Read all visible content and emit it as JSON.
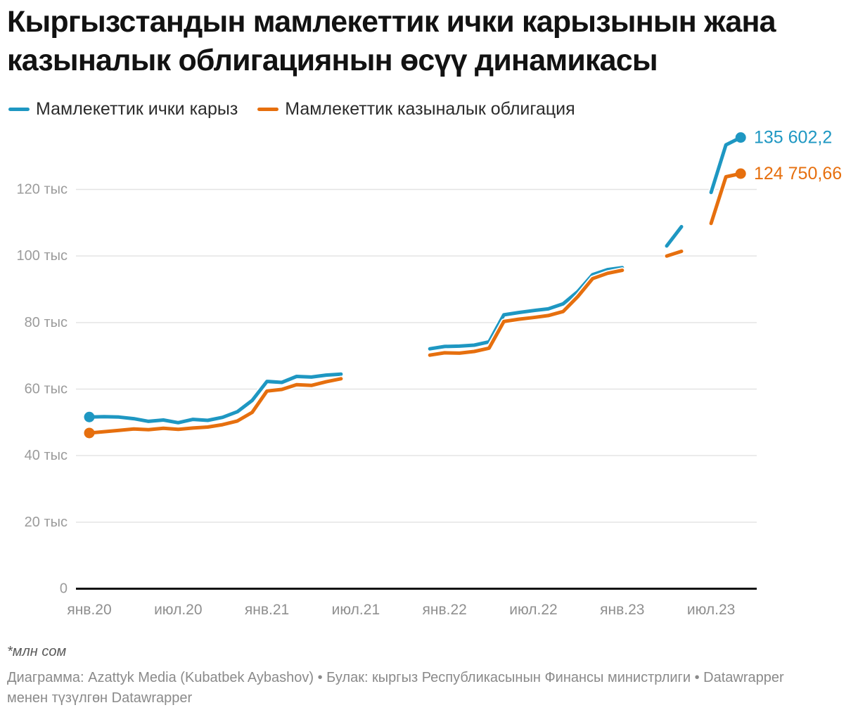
{
  "title": "Кыргызстандын мамлекеттик ички карызынын жана казыналык облигациянын өсүү динамикасы",
  "legend": {
    "items": [
      {
        "label": "Мамлекеттик ички карыз",
        "color": "#1e97c2"
      },
      {
        "label": "Мамлекеттик казыналык облигация",
        "color": "#e66f0e"
      }
    ]
  },
  "footnote": "*млн сом",
  "byline": "Диаграмма: Azattyk Media (Kubatbek Aybashov) • Булак: кыргыз Республикасынын Финансы министрлиги • Datawrapper менен түзүлгөн Datawrapper",
  "chart_data": {
    "type": "line",
    "unit": "млн сом",
    "grid": true,
    "legend_position": "top-left",
    "ylim": [
      0,
      140000
    ],
    "y_ticks": [
      {
        "label": "0",
        "value": 0
      },
      {
        "label": "20 тыс",
        "value": 20000
      },
      {
        "label": "40 тыс",
        "value": 40000
      },
      {
        "label": "60 тыс",
        "value": 60000
      },
      {
        "label": "80 тыс",
        "value": 80000
      },
      {
        "label": "100 тыс",
        "value": 100000
      },
      {
        "label": "120 тыс",
        "value": 120000
      }
    ],
    "x": [
      "2020-01",
      "2020-02",
      "2020-03",
      "2020-04",
      "2020-05",
      "2020-06",
      "2020-07",
      "2020-08",
      "2020-09",
      "2020-10",
      "2020-11",
      "2020-12",
      "2021-01",
      "2021-02",
      "2021-03",
      "2021-04",
      "2021-05",
      "2021-06",
      "2021-07",
      "2021-08",
      "2021-09",
      "2021-10",
      "2021-11",
      "2021-12",
      "2022-01",
      "2022-02",
      "2022-03",
      "2022-04",
      "2022-05",
      "2022-06",
      "2022-07",
      "2022-08",
      "2022-09",
      "2022-10",
      "2022-11",
      "2022-12",
      "2023-01",
      "2023-02",
      "2023-03",
      "2023-04",
      "2023-05",
      "2023-06",
      "2023-07",
      "2023-08",
      "2023-09"
    ],
    "x_ticks": [
      {
        "label": "янв.20",
        "index": 0
      },
      {
        "label": "июл.20",
        "index": 6
      },
      {
        "label": "янв.21",
        "index": 12
      },
      {
        "label": "июл.21",
        "index": 18
      },
      {
        "label": "янв.22",
        "index": 24
      },
      {
        "label": "июл.22",
        "index": 30
      },
      {
        "label": "янв.23",
        "index": 36
      },
      {
        "label": "июл.23",
        "index": 42
      }
    ],
    "series": [
      {
        "name": "Мамлекеттик ички карыз",
        "color": "#1e97c2",
        "end_label": "135 602,2",
        "end_value": 135602.2,
        "values": [
          51600,
          51700,
          51600,
          51100,
          50300,
          50700,
          49900,
          50900,
          50600,
          51500,
          53200,
          56600,
          62300,
          62000,
          63800,
          63600,
          64200,
          64500,
          null,
          null,
          null,
          null,
          null,
          72100,
          72800,
          72900,
          73200,
          74200,
          82300,
          83000,
          83600,
          84100,
          85600,
          89300,
          94400,
          95900,
          96500,
          null,
          null,
          103000,
          108800,
          null,
          119100,
          133400,
          135602.2
        ]
      },
      {
        "name": "Мамлекеттик казыналык облигация",
        "color": "#e66f0e",
        "end_label": "124 750,66",
        "end_value": 124750.66,
        "values": [
          46800,
          47200,
          47600,
          48000,
          47800,
          48200,
          47900,
          48300,
          48600,
          49300,
          50400,
          53000,
          59400,
          59900,
          61300,
          61100,
          62200,
          63100,
          null,
          null,
          null,
          null,
          null,
          70200,
          70900,
          70800,
          71300,
          72300,
          80300,
          81000,
          81500,
          82100,
          83300,
          87800,
          93200,
          94800,
          95700,
          null,
          null,
          100000,
          101400,
          null,
          109800,
          123800,
          124750.66
        ]
      }
    ]
  }
}
